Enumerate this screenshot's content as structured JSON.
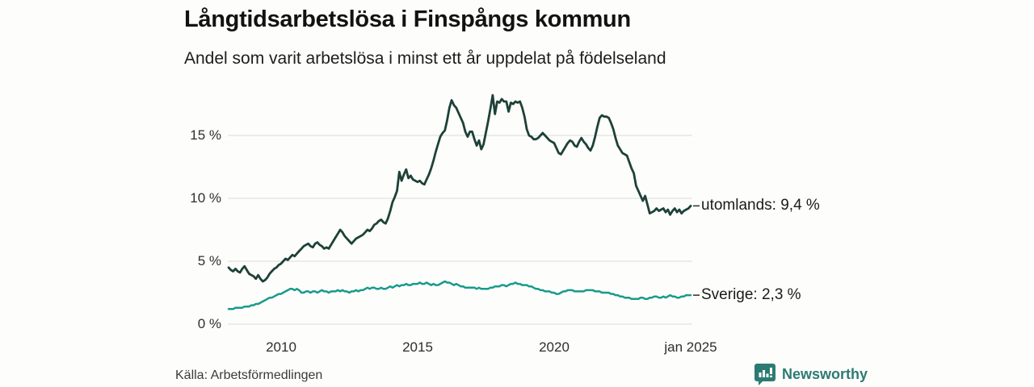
{
  "header": {
    "title": "Långtidsarbetslösa i Finspångs kommun",
    "subtitle": "Andel som varit arbetslösa i minst ett år uppdelat på födelseland"
  },
  "footer": {
    "source": "Källa: Arbetsförmedlingen",
    "brand_name": "Newsworthy",
    "brand_icon": "bar-chart-speech-bubble-icon"
  },
  "colors": {
    "background": "#fdfdfb",
    "gridline": "#e2e2df",
    "annotation_dash": "#3b3b3b",
    "series_utomlands": "#1d4139",
    "series_sverige": "#189a8b",
    "brand_teal": "#2c7b72"
  },
  "chart_data": {
    "type": "line",
    "title": "Långtidsarbetslösa i Finspångs kommun",
    "subtitle": "Andel som varit arbetslösa i minst ett år uppdelat på födelseland",
    "unit": "percent",
    "x_start": "2008-02",
    "x_end": "2025-01",
    "x_interval": "monthly",
    "grid": "horizontal",
    "legend_position": "end-of-line-labels",
    "ylim": [
      0,
      18.6
    ],
    "y_ticks": [
      {
        "label": "0 %",
        "value": 0
      },
      {
        "label": "5 %",
        "value": 5
      },
      {
        "label": "10 %",
        "value": 10
      },
      {
        "label": "15 %",
        "value": 15
      }
    ],
    "x_ticks": [
      {
        "label": "2010"
      },
      {
        "label": "2015"
      },
      {
        "label": "2020"
      },
      {
        "label": "jan 2025"
      }
    ],
    "series": [
      {
        "name": "utomlands",
        "end_label": "utomlands: 9,4 %",
        "end_value": 9.4,
        "color": "#1d4139",
        "values": [
          4.5,
          4.3,
          4.2,
          4.4,
          4.2,
          4.1,
          4.4,
          4.6,
          4.3,
          4.0,
          3.9,
          3.8,
          3.6,
          3.9,
          3.6,
          3.4,
          3.5,
          3.7,
          4.0,
          4.2,
          4.4,
          4.5,
          4.7,
          4.8,
          5.0,
          5.2,
          5.1,
          5.3,
          5.5,
          5.4,
          5.6,
          5.8,
          6.0,
          6.2,
          6.3,
          6.4,
          6.2,
          6.1,
          6.4,
          6.5,
          6.3,
          6.2,
          6.0,
          6.1,
          6.0,
          6.3,
          6.6,
          6.9,
          7.2,
          7.5,
          7.3,
          7.0,
          6.8,
          6.6,
          6.4,
          6.6,
          6.8,
          6.9,
          7.0,
          7.1,
          7.3,
          7.5,
          7.4,
          7.6,
          7.9,
          8.0,
          8.2,
          8.3,
          8.1,
          8.0,
          8.4,
          9.0,
          9.7,
          10.1,
          10.6,
          12.1,
          11.4,
          11.9,
          12.3,
          11.6,
          11.8,
          11.5,
          11.4,
          11.3,
          11.4,
          11.2,
          11.1,
          11.5,
          11.9,
          12.4,
          13.0,
          13.7,
          14.3,
          14.9,
          15.2,
          15.4,
          16.2,
          17.2,
          17.8,
          17.4,
          17.2,
          16.8,
          16.4,
          16.0,
          15.3,
          14.9,
          15.3,
          15.3,
          14.7,
          14.2,
          14.6,
          13.9,
          14.3,
          15.2,
          16.1,
          17.1,
          18.2,
          16.7,
          17.7,
          17.6,
          17.9,
          17.7,
          17.7,
          16.9,
          17.6,
          17.5,
          17.7,
          17.6,
          17.7,
          17.2,
          16.5,
          15.5,
          15.0,
          14.9,
          14.7,
          14.7,
          14.8,
          15.0,
          15.2,
          15.0,
          14.8,
          14.6,
          14.5,
          14.4,
          14.0,
          13.6,
          13.5,
          13.8,
          14.1,
          14.4,
          14.6,
          14.5,
          14.2,
          14.1,
          14.5,
          14.8,
          14.5,
          14.3,
          14.0,
          13.8,
          14.2,
          14.9,
          15.7,
          16.4,
          16.6,
          16.5,
          16.5,
          16.4,
          16.0,
          15.5,
          14.8,
          14.2,
          13.9,
          13.6,
          13.5,
          13.4,
          12.9,
          12.4,
          12.0,
          11.0,
          10.6,
          10.2,
          9.8,
          10.2,
          9.5,
          8.8,
          8.9,
          9.0,
          9.2,
          9.0,
          9.1,
          9.2,
          8.9,
          9.1,
          8.7,
          9.0,
          9.2,
          8.9,
          9.1,
          8.8,
          9.0,
          9.1,
          9.2,
          9.4
        ]
      },
      {
        "name": "Sverige",
        "end_label": "Sverige: 2,3 %",
        "end_value": 2.3,
        "color": "#189a8b",
        "values": [
          1.2,
          1.2,
          1.2,
          1.3,
          1.3,
          1.3,
          1.3,
          1.4,
          1.4,
          1.4,
          1.5,
          1.5,
          1.6,
          1.6,
          1.7,
          1.8,
          1.9,
          2.0,
          2.1,
          2.1,
          2.2,
          2.3,
          2.4,
          2.4,
          2.5,
          2.6,
          2.7,
          2.8,
          2.8,
          2.7,
          2.8,
          2.7,
          2.5,
          2.5,
          2.6,
          2.6,
          2.5,
          2.6,
          2.6,
          2.5,
          2.6,
          2.7,
          2.6,
          2.6,
          2.5,
          2.6,
          2.6,
          2.6,
          2.7,
          2.6,
          2.7,
          2.6,
          2.6,
          2.5,
          2.6,
          2.6,
          2.7,
          2.6,
          2.7,
          2.7,
          2.8,
          2.9,
          2.8,
          2.9,
          2.9,
          2.8,
          2.8,
          2.9,
          2.8,
          2.8,
          2.9,
          3.0,
          2.9,
          3.0,
          3.1,
          3.0,
          3.1,
          3.1,
          3.2,
          3.1,
          3.1,
          3.2,
          3.2,
          3.2,
          3.3,
          3.2,
          3.2,
          3.3,
          3.2,
          3.1,
          3.2,
          3.1,
          3.1,
          3.2,
          3.3,
          3.4,
          3.3,
          3.3,
          3.2,
          3.1,
          3.2,
          3.1,
          3.0,
          3.0,
          2.9,
          2.9,
          2.9,
          2.9,
          2.9,
          2.8,
          2.9,
          2.8,
          2.8,
          2.8,
          2.8,
          2.9,
          2.9,
          3.0,
          3.0,
          3.0,
          3.1,
          3.1,
          3.0,
          3.1,
          3.2,
          3.2,
          3.3,
          3.2,
          3.2,
          3.1,
          3.1,
          3.1,
          3.0,
          3.0,
          2.9,
          2.8,
          2.8,
          2.7,
          2.7,
          2.6,
          2.6,
          2.6,
          2.5,
          2.5,
          2.4,
          2.4,
          2.5,
          2.6,
          2.6,
          2.7,
          2.7,
          2.7,
          2.6,
          2.6,
          2.6,
          2.6,
          2.6,
          2.7,
          2.7,
          2.7,
          2.7,
          2.6,
          2.6,
          2.6,
          2.5,
          2.5,
          2.5,
          2.5,
          2.4,
          2.4,
          2.3,
          2.3,
          2.2,
          2.2,
          2.1,
          2.1,
          2.1,
          2.0,
          2.0,
          2.0,
          2.0,
          2.1,
          2.1,
          2.0,
          2.0,
          2.1,
          2.1,
          2.2,
          2.2,
          2.1,
          2.1,
          2.2,
          2.1,
          2.2,
          2.3,
          2.2,
          2.2,
          2.1,
          2.1,
          2.2,
          2.2,
          2.3,
          2.3,
          2.3
        ]
      }
    ]
  }
}
